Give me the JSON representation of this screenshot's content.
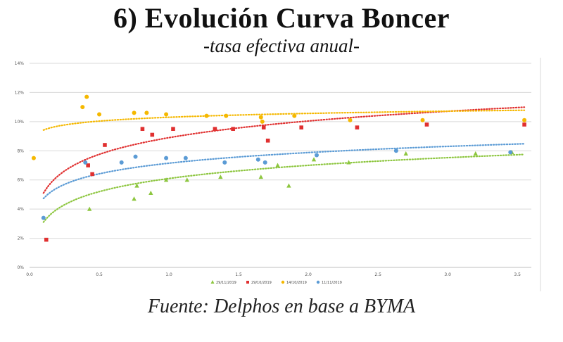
{
  "header": {
    "title": "6) Evolución Curva Boncer",
    "subtitle": "-tasa efectiva anual-"
  },
  "footer": {
    "source": "Fuente: Delphos en base a BYMA"
  },
  "chart_data": {
    "type": "scatter",
    "title": "6) Evolución Curva Boncer",
    "subtitle": "-tasa efectiva anual-",
    "xlabel": "",
    "ylabel": "",
    "xlim": [
      0,
      3.6
    ],
    "ylim": [
      0,
      14
    ],
    "x_ticks": [
      {
        "v": 0,
        "label": "0.0"
      },
      {
        "v": 0.5,
        "label": "0.5"
      },
      {
        "v": 1.0,
        "label": "1.0"
      },
      {
        "v": 1.5,
        "label": "1.5"
      },
      {
        "v": 2.0,
        "label": "2.0"
      },
      {
        "v": 2.5,
        "label": "2.5"
      },
      {
        "v": 3.0,
        "label": "3.0"
      },
      {
        "v": 3.5,
        "label": "3.5"
      }
    ],
    "y_ticks": [
      {
        "v": 0,
        "label": "0%"
      },
      {
        "v": 2,
        "label": "2%"
      },
      {
        "v": 4,
        "label": "4%"
      },
      {
        "v": 6,
        "label": "6%"
      },
      {
        "v": 8,
        "label": "8%"
      },
      {
        "v": 10,
        "label": "10%"
      },
      {
        "v": 12,
        "label": "12%"
      },
      {
        "v": 14,
        "label": "14%"
      }
    ],
    "grid": true,
    "legend_position": "bottom-center",
    "series": [
      {
        "name": "29/11/2019",
        "color": "#8dc63f",
        "marker": "triangle",
        "trend": {
          "a": 6.1,
          "b": 1.3
        },
        "points": [
          [
            0.43,
            4.0
          ],
          [
            0.75,
            4.7
          ],
          [
            0.77,
            5.6
          ],
          [
            0.87,
            5.1
          ],
          [
            0.98,
            6.0
          ],
          [
            1.13,
            6.0
          ],
          [
            1.37,
            6.2
          ],
          [
            1.66,
            6.2
          ],
          [
            1.78,
            7.0
          ],
          [
            1.86,
            5.6
          ],
          [
            2.04,
            7.4
          ],
          [
            2.29,
            7.2
          ],
          [
            2.7,
            7.8
          ],
          [
            3.2,
            7.8
          ],
          [
            3.46,
            7.9
          ]
        ]
      },
      {
        "name": "29/10/2019",
        "color": "#e03030",
        "marker": "square",
        "trend": {
          "a": 8.9,
          "b": 1.65
        },
        "points": [
          [
            0.12,
            1.9
          ],
          [
            0.42,
            7.0
          ],
          [
            0.45,
            6.4
          ],
          [
            0.54,
            8.4
          ],
          [
            0.81,
            9.5
          ],
          [
            0.88,
            9.1
          ],
          [
            1.03,
            9.5
          ],
          [
            1.33,
            9.5
          ],
          [
            1.46,
            9.5
          ],
          [
            1.68,
            9.6
          ],
          [
            1.71,
            8.7
          ],
          [
            1.95,
            9.6
          ],
          [
            2.35,
            9.6
          ],
          [
            2.85,
            9.8
          ],
          [
            3.55,
            9.8
          ]
        ]
      },
      {
        "name": "14/10/2019",
        "color": "#f5b800",
        "marker": "circle",
        "trend": {
          "a": 10.3,
          "b": 0.38
        },
        "points": [
          [
            0.03,
            7.5
          ],
          [
            0.38,
            11.0
          ],
          [
            0.41,
            11.7
          ],
          [
            0.5,
            10.5
          ],
          [
            0.75,
            10.6
          ],
          [
            0.84,
            10.6
          ],
          [
            0.98,
            10.5
          ],
          [
            1.27,
            10.4
          ],
          [
            1.41,
            10.4
          ],
          [
            1.66,
            10.3
          ],
          [
            1.67,
            10.0
          ],
          [
            1.9,
            10.4
          ],
          [
            2.3,
            10.1
          ],
          [
            2.82,
            10.1
          ],
          [
            3.55,
            10.1
          ]
        ]
      },
      {
        "name": "11/11/2019",
        "color": "#5b9bd5",
        "marker": "circle",
        "trend": {
          "a": 7.15,
          "b": 1.05
        },
        "points": [
          [
            0.1,
            3.4
          ],
          [
            0.4,
            7.2
          ],
          [
            0.66,
            7.2
          ],
          [
            0.76,
            7.6
          ],
          [
            0.98,
            7.5
          ],
          [
            1.12,
            7.5
          ],
          [
            1.4,
            7.2
          ],
          [
            1.64,
            7.4
          ],
          [
            1.69,
            7.2
          ],
          [
            2.06,
            7.7
          ],
          [
            2.63,
            8.0
          ],
          [
            3.45,
            7.9
          ]
        ]
      }
    ]
  }
}
